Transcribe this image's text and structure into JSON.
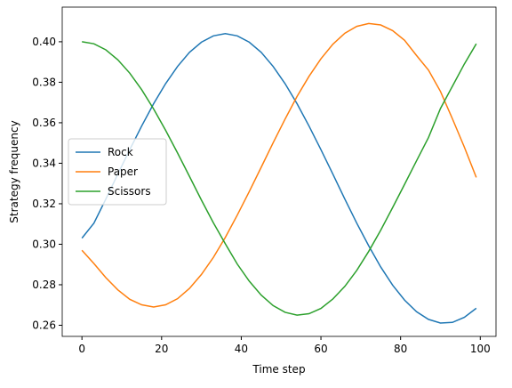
{
  "chart_data": {
    "type": "line",
    "x_label": "Time step",
    "y_label": "Strategy frequency",
    "x": [
      0,
      3,
      6,
      9,
      12,
      15,
      18,
      21,
      24,
      27,
      30,
      33,
      36,
      39,
      42,
      45,
      48,
      51,
      54,
      57,
      60,
      63,
      66,
      69,
      72,
      75,
      78,
      81,
      84,
      87,
      90,
      93,
      96,
      99
    ],
    "series": [
      {
        "name": "Rock",
        "color": "#1f77b4",
        "values": [
          0.303,
          0.3104,
          0.3223,
          0.3346,
          0.3467,
          0.3584,
          0.3694,
          0.3793,
          0.3878,
          0.3948,
          0.3998,
          0.4029,
          0.404,
          0.4029,
          0.3998,
          0.3948,
          0.3878,
          0.3793,
          0.3694,
          0.3584,
          0.3467,
          0.3346,
          0.3223,
          0.3104,
          0.2992,
          0.2888,
          0.2798,
          0.2724,
          0.2667,
          0.2629,
          0.2611,
          0.2614,
          0.2639,
          0.2684
        ]
      },
      {
        "name": "Paper",
        "color": "#ff7f0e",
        "values": [
          0.297,
          0.2905,
          0.2835,
          0.2775,
          0.2728,
          0.2701,
          0.269,
          0.2701,
          0.2731,
          0.2782,
          0.2851,
          0.2935,
          0.3034,
          0.3144,
          0.326,
          0.338,
          0.3501,
          0.3618,
          0.373,
          0.3829,
          0.3916,
          0.3988,
          0.4042,
          0.4076,
          0.409,
          0.4083,
          0.4055,
          0.4007,
          0.3932,
          0.386,
          0.3755,
          0.362,
          0.348,
          0.333
        ]
      },
      {
        "name": "Scissors",
        "color": "#2ca02c",
        "values": [
          0.4,
          0.399,
          0.396,
          0.3911,
          0.3845,
          0.3763,
          0.3668,
          0.3563,
          0.3451,
          0.3335,
          0.3218,
          0.3106,
          0.3002,
          0.2902,
          0.2818,
          0.2749,
          0.2697,
          0.2664,
          0.265,
          0.2657,
          0.2683,
          0.273,
          0.2792,
          0.2871,
          0.2965,
          0.3069,
          0.3181,
          0.3296,
          0.3412,
          0.3527,
          0.367,
          0.378,
          0.389,
          0.399
        ]
      }
    ],
    "xlim": [
      -4.95,
      103.95
    ],
    "ylim": [
      0.2545,
      0.4171
    ],
    "xticks": [
      0,
      20,
      40,
      60,
      80,
      100
    ],
    "yticks": [
      {
        "value": 0.26,
        "label": "0.26"
      },
      {
        "value": 0.28,
        "label": "0.28"
      },
      {
        "value": 0.3,
        "label": "0.30"
      },
      {
        "value": 0.32,
        "label": "0.32"
      },
      {
        "value": 0.34,
        "label": "0.34"
      },
      {
        "value": 0.36,
        "label": "0.36"
      },
      {
        "value": 0.38,
        "label": "0.38"
      },
      {
        "value": 0.4,
        "label": "0.40"
      }
    ],
    "legend": "center left"
  }
}
